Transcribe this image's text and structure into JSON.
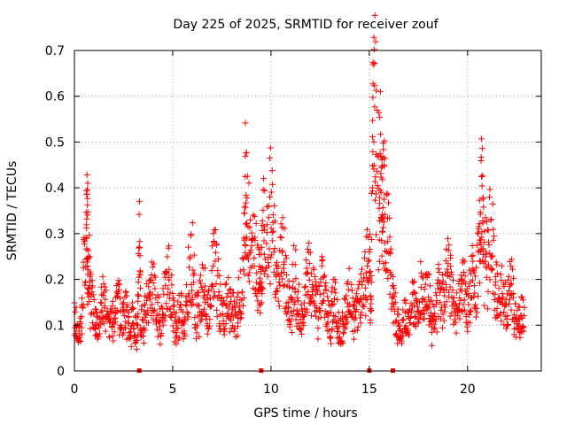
{
  "chart_data": {
    "type": "scatter",
    "title": "Day 225 of 2025, SRMTID for receiver zouf",
    "xlabel": "GPS time / hours",
    "ylabel": "SRMTID / TECUs",
    "xlim": [
      0,
      23.75
    ],
    "ylim": [
      0,
      0.7
    ],
    "x_ticks": [
      0,
      5,
      10,
      15,
      20
    ],
    "y_ticks": [
      0,
      0.1,
      0.2,
      0.3,
      0.4,
      0.5,
      0.6,
      0.7
    ],
    "x_tick_labels": [
      "0",
      "5",
      "10",
      "15",
      "20"
    ],
    "y_tick_labels": [
      "0",
      "0.1",
      "0.2",
      "0.3",
      "0.4",
      "0.5",
      "0.6",
      "0.7"
    ],
    "grid": true,
    "marker": "+",
    "marker_color": "#ff0000",
    "series": [
      {
        "name": "SRMTID",
        "x": [
          0.0,
          0.2,
          0.4,
          0.6,
          0.65,
          0.7,
          0.8,
          1.0,
          1.2,
          1.4,
          1.6,
          1.8,
          2.0,
          2.2,
          2.4,
          2.6,
          2.8,
          3.0,
          3.2,
          3.3,
          3.4,
          3.6,
          3.8,
          4.0,
          4.2,
          4.4,
          4.6,
          4.8,
          5.0,
          5.2,
          5.4,
          5.6,
          5.8,
          6.0,
          6.2,
          6.4,
          6.6,
          6.8,
          7.0,
          7.2,
          7.4,
          7.6,
          7.8,
          8.0,
          8.2,
          8.4,
          8.6,
          8.7,
          8.8,
          9.0,
          9.2,
          9.4,
          9.5,
          9.6,
          9.8,
          10.0,
          10.2,
          10.4,
          10.6,
          10.8,
          11.0,
          11.2,
          11.4,
          11.6,
          11.8,
          12.0,
          12.2,
          12.4,
          12.6,
          12.8,
          13.0,
          13.2,
          13.4,
          13.6,
          13.8,
          14.0,
          14.2,
          14.4,
          14.6,
          14.8,
          15.0,
          15.1,
          15.2,
          15.3,
          15.5,
          15.6,
          15.7,
          15.8,
          16.0,
          16.2,
          16.4,
          16.6,
          16.8,
          17.0,
          17.2,
          17.4,
          17.6,
          17.8,
          18.0,
          18.2,
          18.4,
          18.6,
          18.8,
          19.0,
          19.2,
          19.4,
          19.6,
          19.8,
          20.0,
          20.2,
          20.4,
          20.6,
          20.7,
          20.8,
          21.0,
          21.2,
          21.4,
          21.6,
          21.8,
          22.0,
          22.2,
          22.4,
          22.6,
          22.8
        ],
        "y": [
          0.12,
          0.08,
          0.15,
          0.3,
          0.35,
          0.25,
          0.18,
          0.12,
          0.09,
          0.16,
          0.14,
          0.1,
          0.13,
          0.17,
          0.11,
          0.14,
          0.09,
          0.12,
          0.07,
          0.28,
          0.1,
          0.13,
          0.16,
          0.19,
          0.14,
          0.11,
          0.17,
          0.21,
          0.13,
          0.1,
          0.15,
          0.08,
          0.2,
          0.24,
          0.13,
          0.16,
          0.19,
          0.11,
          0.22,
          0.26,
          0.15,
          0.12,
          0.18,
          0.14,
          0.11,
          0.16,
          0.2,
          0.41,
          0.35,
          0.3,
          0.26,
          0.22,
          0.18,
          0.32,
          0.28,
          0.38,
          0.24,
          0.2,
          0.28,
          0.17,
          0.13,
          0.22,
          0.15,
          0.11,
          0.19,
          0.24,
          0.16,
          0.13,
          0.2,
          0.14,
          0.1,
          0.17,
          0.12,
          0.08,
          0.15,
          0.18,
          0.11,
          0.13,
          0.16,
          0.22,
          0.25,
          0.12,
          0.65,
          0.55,
          0.4,
          0.5,
          0.43,
          0.38,
          0.28,
          0.15,
          0.11,
          0.09,
          0.13,
          0.1,
          0.16,
          0.12,
          0.19,
          0.14,
          0.18,
          0.11,
          0.15,
          0.2,
          0.13,
          0.25,
          0.17,
          0.12,
          0.15,
          0.19,
          0.13,
          0.21,
          0.17,
          0.28,
          0.4,
          0.3,
          0.24,
          0.32,
          0.2,
          0.15,
          0.18,
          0.12,
          0.2,
          0.14,
          0.11,
          0.13
        ]
      }
    ],
    "zero_points_x": [
      3.3,
      9.5,
      15.0,
      16.2
    ]
  }
}
